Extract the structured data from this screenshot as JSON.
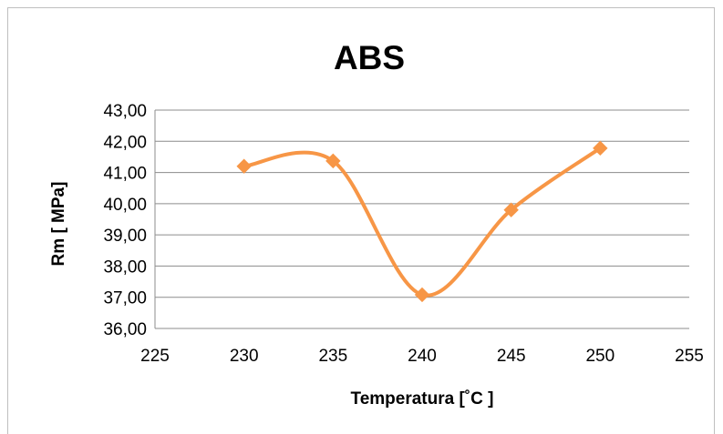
{
  "chart_data": {
    "type": "scatter",
    "title": "ABS",
    "xlabel": "Temperatura  [˚C ]",
    "ylabel": "Rm [ MPa]",
    "xlim": [
      225,
      255
    ],
    "ylim": [
      36,
      43
    ],
    "x_ticks": [
      "225",
      "230",
      "235",
      "240",
      "245",
      "250",
      "255"
    ],
    "y_ticks": [
      "36,00",
      "37,00",
      "38,00",
      "39,00",
      "40,00",
      "41,00",
      "42,00",
      "43,00"
    ],
    "grid": true,
    "smooth_line": true,
    "series": [
      {
        "x": [
          230,
          235,
          240,
          245,
          250
        ],
        "y": [
          41.2,
          41.37,
          37.08,
          39.8,
          41.78
        ],
        "color": "#f79646",
        "marker": "diamond"
      }
    ]
  }
}
